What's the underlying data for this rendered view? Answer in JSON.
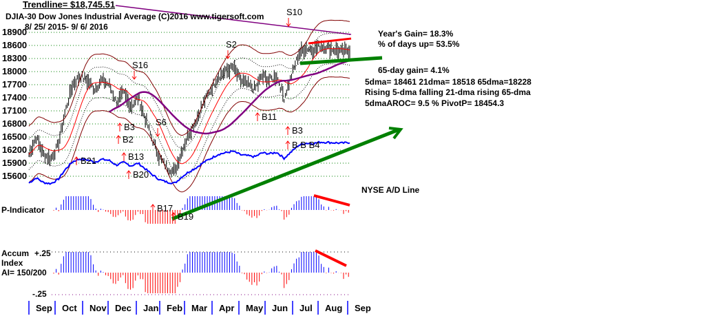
{
  "header": {
    "trendline": "Trendline= $18,745.51",
    "title": "DJIA-30  Dow Jones Industrial Average   (C)2016 www.tigersoft.com",
    "date_range": "8/ 25/ 2015- 9/ 6/ 2016"
  },
  "stats": {
    "years_gain": "Year's Gain= 18.3%",
    "pct_days_up": "% of days up= 53.5%",
    "gain_65": "65-day gain= 4.1%",
    "dma": "5dma= 18461 21dma= 18518 65dma=18228",
    "trend": "Rising 5-dma  falling 21-dma  rising 65-dma",
    "aroc": "5dmaAROC= 9.5 %  PivotP= 18454.3"
  },
  "labels": {
    "ad_line": "NYSE A/D Line",
    "p_indicator": "P-Indicator",
    "accum1": "Accum",
    "accum2": "Index",
    "accum3": "AI= 150/200",
    "ai_top": "+.25",
    "ai_bottom": "-.25"
  },
  "colors": {
    "up": "#0000ff",
    "down": "#ff0000",
    "trend_up": "#008000",
    "ma65": "#800080",
    "band": "#800000"
  },
  "chart_data": {
    "type": "bar",
    "title": "DJIA-30 Dow Jones Industrial Average",
    "yticks": [
      18900,
      18600,
      18300,
      18000,
      17700,
      17400,
      17100,
      16800,
      16500,
      16200,
      15900,
      15600
    ],
    "ylim": [
      15600,
      18900
    ],
    "months": [
      "Sep",
      "Oct",
      "Nov",
      "Dec",
      "Jan",
      "Feb",
      "Mar",
      "Apr",
      "May",
      "Jun",
      "Jul",
      "Aug",
      "Sep"
    ],
    "close": [
      16100,
      16500,
      16100,
      16000,
      16300,
      17100,
      17700,
      17900,
      17800,
      17600,
      17800,
      17700,
      17300,
      17500,
      17200,
      17400,
      16900,
      16400,
      16000,
      15800,
      15700,
      16200,
      16600,
      16900,
      17300,
      17600,
      17900,
      18000,
      18100,
      17800,
      17700,
      17600,
      17900,
      17800,
      17900,
      17400,
      17900,
      18400,
      18550,
      18500,
      18600,
      18550,
      18500,
      18450,
      18500
    ],
    "signals": [
      "S10",
      "S2",
      "S16",
      "S6",
      "B3",
      "B2",
      "B21",
      "B13",
      "B20",
      "B11",
      "B3",
      "B17",
      "B19",
      "B B B4"
    ]
  }
}
